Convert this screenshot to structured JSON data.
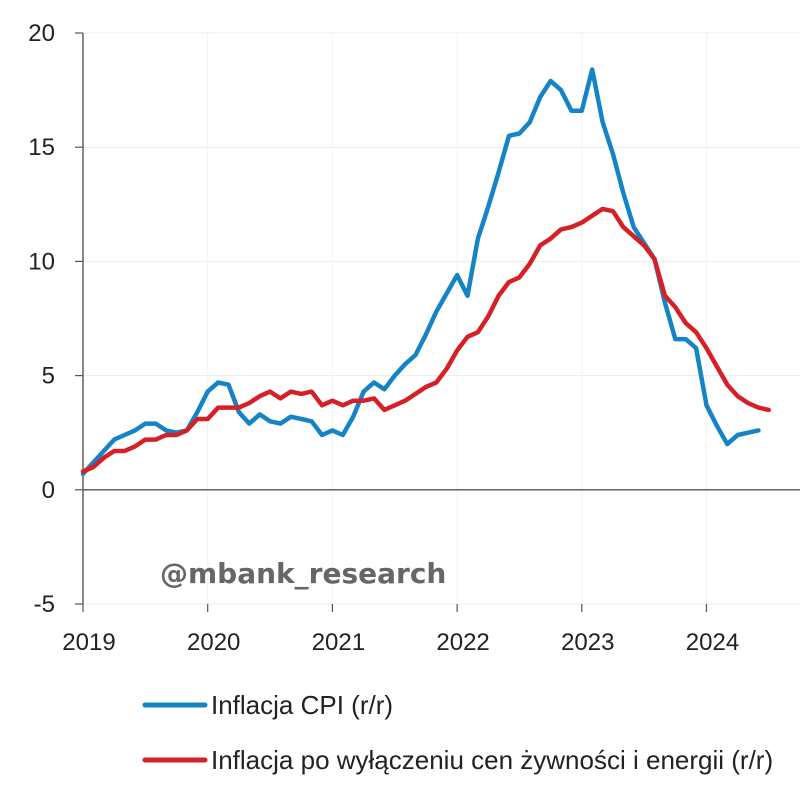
{
  "watermark": "@mbank_research",
  "chart_data": {
    "type": "line",
    "grid": true,
    "ylim": [
      -5,
      20
    ],
    "yticks": [
      -5,
      0,
      5,
      10,
      15,
      20
    ],
    "xlim": [
      2019.0,
      2024.75
    ],
    "xticks": [
      2019,
      2020,
      2021,
      2022,
      2023,
      2024
    ],
    "xtick_labels": [
      "2019",
      "2020",
      "2021",
      "2022",
      "2023",
      "2024"
    ],
    "legend_position": "bottom",
    "series": [
      {
        "name": "Inflacja CPI (r/r)",
        "color": "#1584C7",
        "x": [
          2019.0,
          2019.0833,
          2019.1667,
          2019.25,
          2019.3333,
          2019.4167,
          2019.5,
          2019.5833,
          2019.6667,
          2019.75,
          2019.8333,
          2019.9167,
          2020.0,
          2020.0833,
          2020.1667,
          2020.25,
          2020.3333,
          2020.4167,
          2020.5,
          2020.5833,
          2020.6667,
          2020.75,
          2020.8333,
          2020.9167,
          2021.0,
          2021.0833,
          2021.1667,
          2021.25,
          2021.3333,
          2021.4167,
          2021.5,
          2021.5833,
          2021.6667,
          2021.75,
          2021.8333,
          2021.9167,
          2022.0,
          2022.0833,
          2022.1667,
          2022.25,
          2022.3333,
          2022.4167,
          2022.5,
          2022.5833,
          2022.6667,
          2022.75,
          2022.8333,
          2022.9167,
          2023.0,
          2023.0833,
          2023.1667,
          2023.25,
          2023.3333,
          2023.4167,
          2023.5,
          2023.5833,
          2023.6667,
          2023.75,
          2023.8333,
          2023.9167,
          2024.0,
          2024.0833,
          2024.1667,
          2024.25,
          2024.3333,
          2024.4167
        ],
        "values": [
          0.7,
          1.2,
          1.7,
          2.2,
          2.4,
          2.6,
          2.9,
          2.9,
          2.6,
          2.5,
          2.6,
          3.4,
          4.3,
          4.7,
          4.6,
          3.4,
          2.9,
          3.3,
          3.0,
          2.9,
          3.2,
          3.1,
          3.0,
          2.4,
          2.6,
          2.4,
          3.2,
          4.3,
          4.7,
          4.4,
          5.0,
          5.5,
          5.9,
          6.8,
          7.8,
          8.6,
          9.4,
          8.5,
          11.0,
          12.4,
          13.9,
          15.5,
          15.6,
          16.1,
          17.2,
          17.9,
          17.5,
          16.6,
          16.6,
          18.4,
          16.1,
          14.7,
          13.0,
          11.5,
          10.8,
          10.1,
          8.2,
          6.6,
          6.6,
          6.2,
          3.7,
          2.8,
          2.0,
          2.4,
          2.5,
          2.6
        ]
      },
      {
        "name": "Inflacja po wyłączeniu cen żywności i energii (r/r)",
        "color": "#D62027",
        "x": [
          2019.0,
          2019.0833,
          2019.1667,
          2019.25,
          2019.3333,
          2019.4167,
          2019.5,
          2019.5833,
          2019.6667,
          2019.75,
          2019.8333,
          2019.9167,
          2020.0,
          2020.0833,
          2020.1667,
          2020.25,
          2020.3333,
          2020.4167,
          2020.5,
          2020.5833,
          2020.6667,
          2020.75,
          2020.8333,
          2020.9167,
          2021.0,
          2021.0833,
          2021.1667,
          2021.25,
          2021.3333,
          2021.4167,
          2021.5,
          2021.5833,
          2021.6667,
          2021.75,
          2021.8333,
          2021.9167,
          2022.0,
          2022.0833,
          2022.1667,
          2022.25,
          2022.3333,
          2022.4167,
          2022.5,
          2022.5833,
          2022.6667,
          2022.75,
          2022.8333,
          2022.9167,
          2023.0,
          2023.0833,
          2023.1667,
          2023.25,
          2023.3333,
          2023.4167,
          2023.5,
          2023.5833,
          2023.6667,
          2023.75,
          2023.8333,
          2023.9167,
          2024.0,
          2024.0833,
          2024.1667,
          2024.25,
          2024.3333,
          2024.4167,
          2024.5
        ],
        "values": [
          0.8,
          1.0,
          1.4,
          1.7,
          1.7,
          1.9,
          2.2,
          2.2,
          2.4,
          2.4,
          2.6,
          3.1,
          3.1,
          3.6,
          3.6,
          3.6,
          3.8,
          4.1,
          4.3,
          4.0,
          4.3,
          4.2,
          4.3,
          3.7,
          3.9,
          3.7,
          3.9,
          3.9,
          4.0,
          3.5,
          3.7,
          3.9,
          4.2,
          4.5,
          4.7,
          5.3,
          6.1,
          6.7,
          6.9,
          7.6,
          8.5,
          9.1,
          9.3,
          9.9,
          10.7,
          11.0,
          11.4,
          11.5,
          11.7,
          12.0,
          12.3,
          12.2,
          11.5,
          11.1,
          10.7,
          10.1,
          8.5,
          8.0,
          7.3,
          6.9,
          6.2,
          5.4,
          4.6,
          4.1,
          3.8,
          3.6,
          3.5
        ]
      }
    ]
  }
}
